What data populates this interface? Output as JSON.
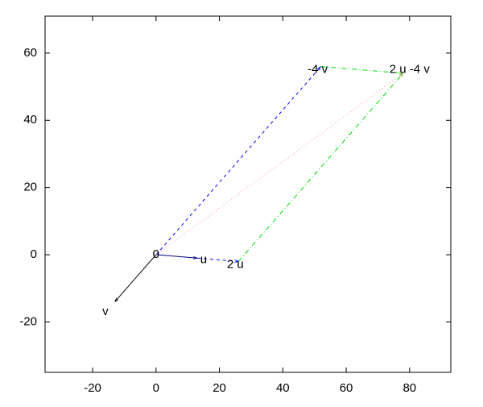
{
  "chart_data": {
    "type": "vector",
    "xlim": [
      -35,
      93
    ],
    "ylim": [
      -35,
      71
    ],
    "xticks": [
      -20,
      0,
      20,
      40,
      60,
      80
    ],
    "yticks": [
      -20,
      0,
      20,
      40,
      60
    ],
    "vectors": [
      {
        "from": [
          0,
          0
        ],
        "to": [
          -13,
          -14
        ],
        "color": "#000000",
        "style": "solid"
      },
      {
        "from": [
          0,
          0
        ],
        "to": [
          13,
          -1
        ],
        "color": "#00007f",
        "style": "solid"
      },
      {
        "from": [
          13,
          -1
        ],
        "to": [
          26,
          -2
        ],
        "color": "#0000ff",
        "style": "dashed"
      },
      {
        "from": [
          0,
          0
        ],
        "to": [
          52,
          56
        ],
        "color": "#0000ff",
        "style": "dashed"
      },
      {
        "from": [
          26,
          -2
        ],
        "to": [
          78,
          54
        ],
        "color": "#00dd00",
        "style": "dashdot"
      },
      {
        "from": [
          52,
          56
        ],
        "to": [
          78,
          54
        ],
        "color": "#00dd00",
        "style": "dashdot"
      },
      {
        "from": [
          0,
          0
        ],
        "to": [
          78,
          54
        ],
        "color": "#ff9999",
        "style": "dotted"
      }
    ],
    "points": [
      {
        "label": "0",
        "x": 0,
        "y": 0
      },
      {
        "label": "u",
        "x": 15,
        "y": -1.5
      },
      {
        "label": "2 u",
        "x": 25,
        "y": -3
      },
      {
        "label": "v",
        "x": -16,
        "y": -17
      },
      {
        "label": "-4 v",
        "x": 51,
        "y": 55
      },
      {
        "label": "2 u -4 v",
        "x": 80,
        "y": 55
      }
    ]
  }
}
